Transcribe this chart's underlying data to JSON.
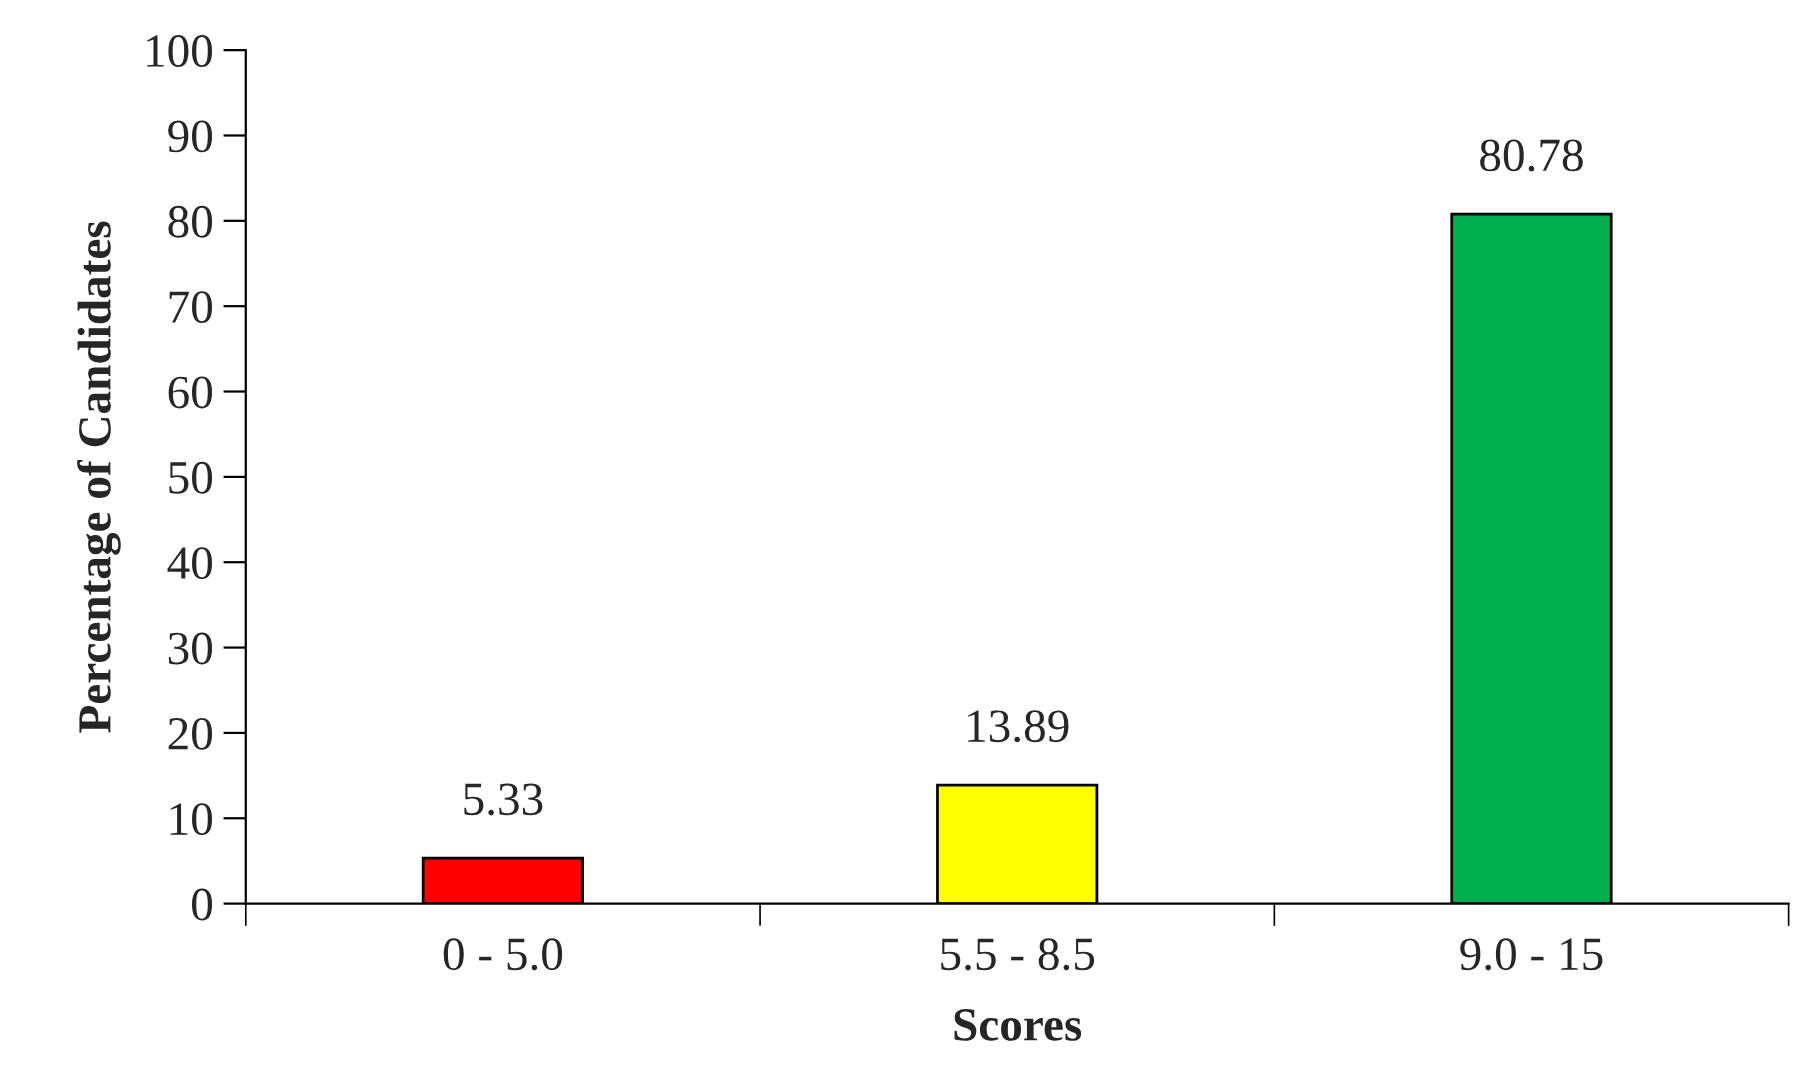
{
  "chart_data": {
    "type": "bar",
    "xlabel": "Scores",
    "ylabel": "Percentage of Candidates",
    "categories": [
      "0 - 5.0",
      "5.5 - 8.5",
      "9.0 - 15"
    ],
    "values": [
      5.33,
      13.89,
      80.78
    ],
    "colors": [
      "#ff0000",
      "#ffff00",
      "#00b050"
    ],
    "ylim": [
      0,
      100
    ],
    "yticks": [
      0,
      10,
      20,
      30,
      40,
      50,
      60,
      70,
      80,
      90,
      100
    ],
    "grid": false,
    "data_labels": true
  }
}
